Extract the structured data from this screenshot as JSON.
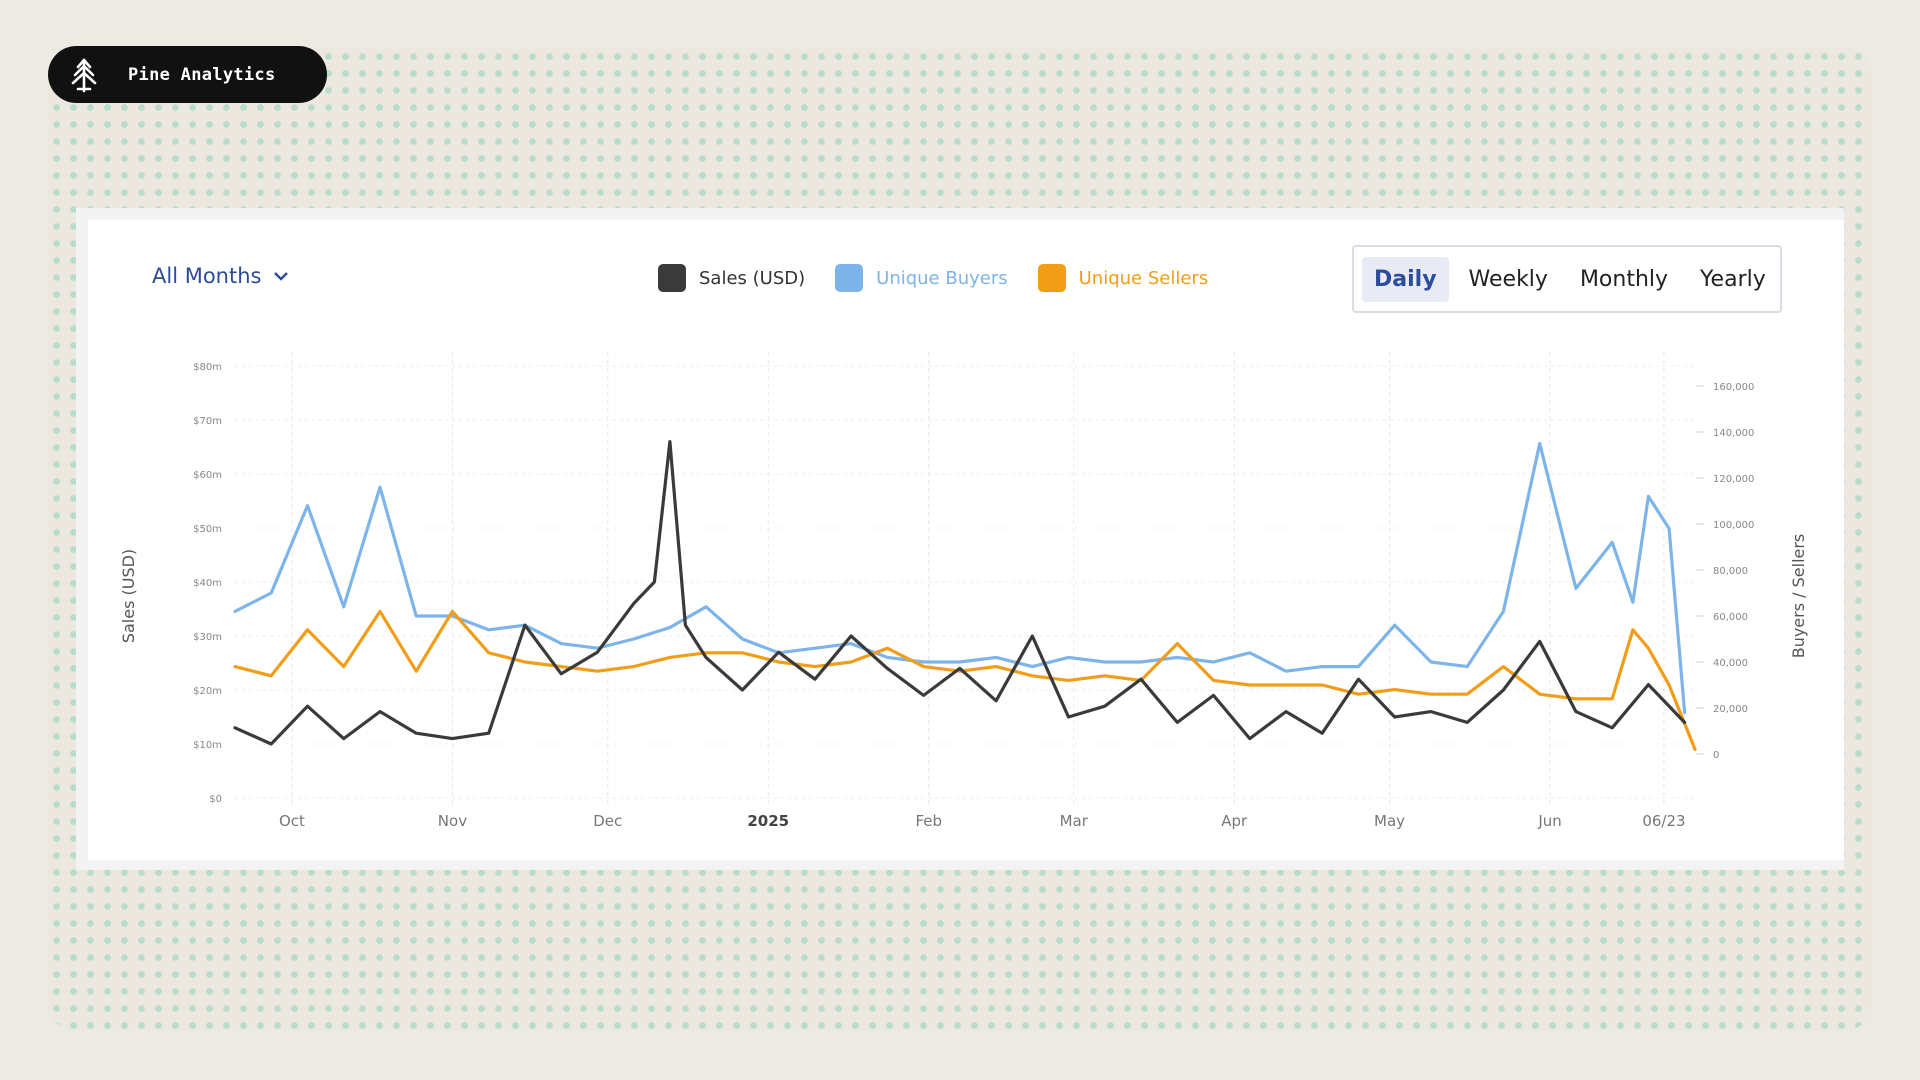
{
  "brand": {
    "name": "Pine Analytics",
    "icon": "pine-tree-icon"
  },
  "controls": {
    "months_select": "All Months",
    "period_options": [
      "Daily",
      "Weekly",
      "Monthly",
      "Yearly"
    ],
    "period_selected": "Daily"
  },
  "colors": {
    "sales": "#3a3a3a",
    "buyers": "#7db4ea",
    "sellers": "#f29d17",
    "accent": "#2b4c9c"
  },
  "chart_data": {
    "type": "line",
    "x_tick_labels": [
      "Oct",
      "Nov",
      "Dec",
      "2025",
      "Feb",
      "Mar",
      "Apr",
      "May",
      "Jun",
      "06/23"
    ],
    "ylabel": "Sales (USD)",
    "y2label": "Buyers / Sellers",
    "y_tick_labels": [
      "$80m",
      "$70m",
      "$60m",
      "$50m",
      "$40m",
      "$30m",
      "$20m",
      "$10m",
      "$0"
    ],
    "y2_tick_labels": [
      "160,000",
      "140,000",
      "120,000",
      "100,000",
      "80,000",
      "60,000",
      "40,000",
      "20,000",
      "0"
    ],
    "ylim": [
      0,
      80000000
    ],
    "y2lim": [
      0,
      160000
    ],
    "x_range": [
      "2024-09-20",
      "2025-06-29"
    ],
    "grid": true,
    "legend_position": "top-center",
    "series": [
      {
        "name": "Sales (USD)",
        "axis": "left",
        "color": "#3a3a3a",
        "x": [
          "2024-09-20",
          "2024-09-27",
          "2024-10-04",
          "2024-10-11",
          "2024-10-18",
          "2024-10-25",
          "2024-11-01",
          "2024-11-08",
          "2024-11-15",
          "2024-11-22",
          "2024-11-29",
          "2024-12-06",
          "2024-12-10",
          "2024-12-13",
          "2024-12-16",
          "2024-12-20",
          "2024-12-27",
          "2025-01-03",
          "2025-01-10",
          "2025-01-17",
          "2025-01-24",
          "2025-01-31",
          "2025-02-07",
          "2025-02-14",
          "2025-02-21",
          "2025-02-28",
          "2025-03-07",
          "2025-03-14",
          "2025-03-21",
          "2025-03-28",
          "2025-04-04",
          "2025-04-11",
          "2025-04-18",
          "2025-04-25",
          "2025-05-02",
          "2025-05-09",
          "2025-05-16",
          "2025-05-23",
          "2025-05-30",
          "2025-06-06",
          "2025-06-13",
          "2025-06-20",
          "2025-06-27"
        ],
        "values": [
          13,
          10,
          17,
          11,
          16,
          12,
          11,
          12,
          32,
          23,
          27,
          36,
          40,
          66,
          32,
          26,
          20,
          27,
          22,
          30,
          24,
          19,
          24,
          18,
          30,
          15,
          17,
          22,
          14,
          19,
          11,
          16,
          12,
          22,
          15,
          16,
          14,
          20,
          29,
          16,
          13,
          21,
          14
        ]
      },
      {
        "name": "Unique Buyers",
        "axis": "right",
        "color": "#7db4ea",
        "x": [
          "2024-09-20",
          "2024-09-27",
          "2024-10-04",
          "2024-10-11",
          "2024-10-18",
          "2024-10-25",
          "2024-11-01",
          "2024-11-08",
          "2024-11-15",
          "2024-11-22",
          "2024-11-29",
          "2024-12-06",
          "2024-12-13",
          "2024-12-20",
          "2024-12-27",
          "2025-01-03",
          "2025-01-10",
          "2025-01-17",
          "2025-01-24",
          "2025-01-31",
          "2025-02-07",
          "2025-02-14",
          "2025-02-21",
          "2025-02-28",
          "2025-03-07",
          "2025-03-14",
          "2025-03-21",
          "2025-03-28",
          "2025-04-04",
          "2025-04-11",
          "2025-04-18",
          "2025-04-25",
          "2025-05-02",
          "2025-05-09",
          "2025-05-16",
          "2025-05-23",
          "2025-05-30",
          "2025-06-06",
          "2025-06-13",
          "2025-06-17",
          "2025-06-20",
          "2025-06-24",
          "2025-06-27"
        ],
        "values": [
          62000,
          70000,
          108000,
          64000,
          116000,
          60000,
          60000,
          54000,
          56000,
          48000,
          46000,
          50000,
          55000,
          64000,
          50000,
          44000,
          46000,
          48000,
          42000,
          40000,
          40000,
          42000,
          38000,
          42000,
          40000,
          40000,
          42000,
          40000,
          44000,
          36000,
          38000,
          38000,
          56000,
          40000,
          38000,
          62000,
          135000,
          72000,
          92000,
          66000,
          112000,
          98000,
          18000
        ]
      },
      {
        "name": "Unique Sellers",
        "axis": "right",
        "color": "#f29d17",
        "x": [
          "2024-09-20",
          "2024-09-27",
          "2024-10-04",
          "2024-10-11",
          "2024-10-18",
          "2024-10-25",
          "2024-11-01",
          "2024-11-08",
          "2024-11-15",
          "2024-11-22",
          "2024-11-29",
          "2024-12-06",
          "2024-12-13",
          "2024-12-20",
          "2024-12-27",
          "2025-01-03",
          "2025-01-10",
          "2025-01-17",
          "2025-01-24",
          "2025-01-31",
          "2025-02-07",
          "2025-02-14",
          "2025-02-21",
          "2025-02-28",
          "2025-03-07",
          "2025-03-14",
          "2025-03-21",
          "2025-03-28",
          "2025-04-04",
          "2025-04-11",
          "2025-04-18",
          "2025-04-25",
          "2025-05-02",
          "2025-05-09",
          "2025-05-16",
          "2025-05-23",
          "2025-05-30",
          "2025-06-06",
          "2025-06-13",
          "2025-06-17",
          "2025-06-20",
          "2025-06-24",
          "2025-06-29"
        ],
        "values": [
          38000,
          34000,
          54000,
          38000,
          62000,
          36000,
          62000,
          44000,
          40000,
          38000,
          36000,
          38000,
          42000,
          44000,
          44000,
          40000,
          38000,
          40000,
          46000,
          38000,
          36000,
          38000,
          34000,
          32000,
          34000,
          32000,
          48000,
          32000,
          30000,
          30000,
          30000,
          26000,
          28000,
          26000,
          26000,
          38000,
          26000,
          24000,
          24000,
          54000,
          46000,
          30000,
          2000
        ]
      }
    ]
  }
}
